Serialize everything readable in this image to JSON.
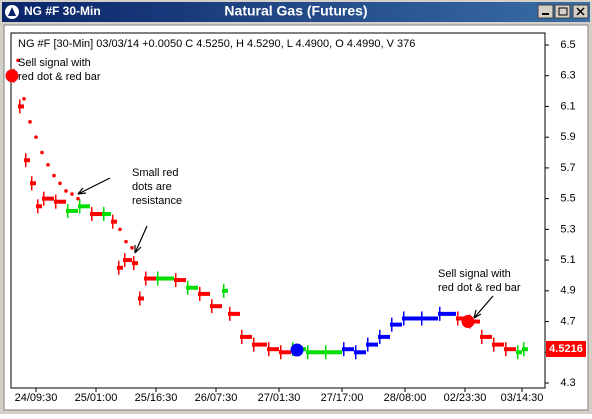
{
  "window": {
    "title_left": "NG #F 30-Min",
    "title": "Natural Gas (Futures)"
  },
  "chart_data": {
    "type": "price-bars",
    "info": "NG #F [30-Min] 03/03/14 +0.0050 C 4.5250, H 4.5290, L 4.4900, O 4.4990, V 376",
    "x": [
      0,
      2,
      4,
      6,
      8,
      10,
      14,
      18,
      22,
      26,
      30,
      33,
      35,
      37,
      40,
      42,
      44,
      48,
      54,
      58,
      62,
      66,
      70,
      72,
      76,
      80,
      85,
      89,
      93,
      98,
      104,
      110,
      114,
      118,
      122,
      126,
      130,
      136,
      142,
      148,
      152,
      156,
      160,
      164,
      168,
      170
    ],
    "values": [
      6.3,
      6.1,
      5.75,
      5.6,
      5.45,
      5.5,
      5.48,
      5.42,
      5.45,
      5.4,
      5.4,
      5.35,
      5.05,
      5.1,
      5.08,
      4.85,
      4.98,
      4.98,
      4.97,
      4.92,
      4.88,
      4.8,
      4.9,
      4.75,
      4.6,
      4.55,
      4.52,
      4.5,
      4.52,
      4.5,
      4.5,
      4.52,
      4.5,
      4.55,
      4.6,
      4.68,
      4.72,
      4.72,
      4.75,
      4.72,
      4.7,
      4.6,
      4.55,
      4.52,
      4.5,
      4.52
    ],
    "colors": [
      "#ff0000",
      "#ff0000",
      "#ff0000",
      "#ff0000",
      "#ff0000",
      "#ff0000",
      "#ff0000",
      "#00dd00",
      "#00dd00",
      "#ff0000",
      "#00dd00",
      "#ff0000",
      "#ff0000",
      "#ff0000",
      "#ff0000",
      "#ff0000",
      "#ff0000",
      "#00dd00",
      "#ff0000",
      "#00dd00",
      "#ff0000",
      "#ff0000",
      "#00dd00",
      "#ff0000",
      "#ff0000",
      "#ff0000",
      "#ff0000",
      "#ff0000",
      "#00dd00",
      "#00dd00",
      "#00dd00",
      "#0000ff",
      "#0000ff",
      "#0000ff",
      "#0000ff",
      "#0000ff",
      "#0000ff",
      "#0000ff",
      "#0000ff",
      "#ff0000",
      "#ff0000",
      "#ff0000",
      "#ff0000",
      "#ff0000",
      "#00dd00",
      "#00dd00"
    ],
    "dots": {
      "color": "#ff0000",
      "x": [
        2,
        4,
        6,
        8,
        10,
        12,
        14,
        16,
        18,
        20,
        22,
        36,
        38,
        40
      ],
      "values": [
        6.4,
        6.15,
        6.0,
        5.9,
        5.8,
        5.72,
        5.65,
        5.6,
        5.55,
        5.53,
        5.5,
        5.3,
        5.22,
        5.18
      ]
    },
    "signals": [
      {
        "x": 0,
        "value": 6.3,
        "color": "#ff0000"
      },
      {
        "x": 95,
        "value": 4.515,
        "color": "#0000ff"
      },
      {
        "x": 152,
        "value": 4.7,
        "color": "#ff0000"
      }
    ],
    "annotations": [
      "Sell signal with\nred dot & red bar",
      "Small red\ndots are\nresistance",
      "Sell signal with\nred dot & red bar"
    ],
    "last_price": 4.5216,
    "xlim": [
      0,
      176
    ],
    "xticks": [
      {
        "value": 8,
        "label": "24/09:30"
      },
      {
        "value": 28,
        "label": "25/01:00"
      },
      {
        "value": 48,
        "label": "25/16:30"
      },
      {
        "value": 68,
        "label": "26/07:30"
      },
      {
        "value": 89,
        "label": "27/01:30"
      },
      {
        "value": 110,
        "label": "27/17:00"
      },
      {
        "value": 131,
        "label": "28/08:00"
      },
      {
        "value": 151,
        "label": "02/23:30"
      },
      {
        "value": 170,
        "label": "03/14:30"
      }
    ],
    "ylim": [
      4.3,
      6.5
    ],
    "yticks": [
      4.3,
      4.5,
      4.7,
      4.9,
      5.1,
      5.3,
      5.5,
      5.7,
      5.9,
      6.1,
      6.3,
      6.5
    ]
  }
}
